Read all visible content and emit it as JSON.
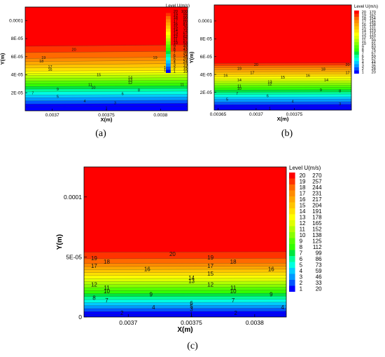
{
  "palette": [
    "#0000ff",
    "#0055ff",
    "#0099ff",
    "#00ccff",
    "#00ffe0",
    "#00ff9a",
    "#00e640",
    "#33ff00",
    "#55ff00",
    "#88ff00",
    "#b3ff00",
    "#dfff00",
    "#ffff00",
    "#ffe000",
    "#ffc400",
    "#ffa800",
    "#ff8c00",
    "#ff6a00",
    "#ff3300",
    "#ff0000"
  ],
  "chart_data": [
    {
      "panel": "a",
      "type": "heatmap",
      "caption": "(a)",
      "xlabel": "X(m)",
      "ylabel": "Y(m)",
      "xlim": [
        0.003675,
        0.003825
      ],
      "ylim": [
        0,
        0.000115
      ],
      "xticks": [
        {
          "v": 0.0037,
          "label": "0.0037"
        },
        {
          "v": 0.00375,
          "label": "0.00375"
        },
        {
          "v": 0.0038,
          "label": "0.0038"
        }
      ],
      "yticks": [
        {
          "v": 2e-05,
          "label": "2E-05"
        },
        {
          "v": 4e-05,
          "label": "4E-05"
        },
        {
          "v": 6e-05,
          "label": "6E-05"
        },
        {
          "v": 8e-05,
          "label": "8E-05"
        },
        {
          "v": 0.0001,
          "label": "0.0001"
        }
      ],
      "legend_title": "Level U(m/s)",
      "levels": [
        20,
        19,
        18,
        17,
        16,
        15,
        14,
        13,
        12,
        11,
        10,
        9,
        8,
        7,
        6,
        5,
        4,
        3,
        2,
        1
      ],
      "values": [
        100,
        95,
        90,
        86,
        81,
        76,
        72,
        67,
        62,
        57,
        53,
        48,
        43,
        38,
        34,
        29,
        24,
        19,
        15,
        10
      ],
      "band_top_y": [
        4.5e-06,
        7.5e-06,
        1.1e-05,
        1.45e-05,
        1.75e-05,
        2.1e-05,
        2.4e-05,
        2.7e-05,
        3e-05,
        3.3e-05,
        3.6e-05,
        3.9e-05,
        4.15e-05,
        4.4e-05,
        4.75e-05,
        5.1e-05,
        5.45e-05,
        5.8e-05,
        6.45e-05,
        7.15e-05
      ],
      "contour_labels": [
        {
          "text": "20",
          "x": 0.00372,
          "y": 6.8e-05
        },
        {
          "text": "19",
          "x": 0.003692,
          "y": 5.9e-05
        },
        {
          "text": "19",
          "x": 0.003795,
          "y": 5.9e-05
        },
        {
          "text": "18",
          "x": 0.00369,
          "y": 5.5e-05
        },
        {
          "text": "17",
          "x": 0.003698,
          "y": 4.9e-05
        },
        {
          "text": "17",
          "x": 0.003805,
          "y": 4.8e-05
        },
        {
          "text": "16",
          "x": 0.003698,
          "y": 4.6e-05
        },
        {
          "text": "16",
          "x": 0.003805,
          "y": 4.5e-05
        },
        {
          "text": "15",
          "x": 0.003743,
          "y": 4e-05
        },
        {
          "text": "14",
          "x": 0.003772,
          "y": 3.7e-05
        },
        {
          "text": "13",
          "x": 0.003772,
          "y": 3.4e-05
        },
        {
          "text": "12",
          "x": 0.003772,
          "y": 3.1e-05
        },
        {
          "text": "11",
          "x": 0.003735,
          "y": 2.9e-05
        },
        {
          "text": "11",
          "x": 0.00382,
          "y": 2.9e-05
        },
        {
          "text": "10",
          "x": 0.003738,
          "y": 2.6e-05
        },
        {
          "text": "9",
          "x": 0.003705,
          "y": 2.4e-05
        },
        {
          "text": "8",
          "x": 0.00378,
          "y": 2.3e-05
        },
        {
          "text": "7",
          "x": 0.003682,
          "y": 2e-05
        },
        {
          "text": "6",
          "x": 0.003765,
          "y": 1.9e-05
        },
        {
          "text": "5",
          "x": 0.003705,
          "y": 1.6e-05
        },
        {
          "text": "4",
          "x": 0.00373,
          "y": 1.1e-05
        },
        {
          "text": "3",
          "x": 0.003758,
          "y": 9e-06
        },
        {
          "text": "1",
          "x": 0.00375,
          "y": 3e-06
        }
      ]
    },
    {
      "panel": "b",
      "type": "heatmap",
      "caption": "(b)",
      "xlabel": "X(m)",
      "ylabel": "Y(m)",
      "xlim": [
        0.003645,
        0.003825
      ],
      "ylim": [
        0,
        0.000118
      ],
      "xticks": [
        {
          "v": 0.00365,
          "label": "0.00365"
        },
        {
          "v": 0.0037,
          "label": "0.0037"
        },
        {
          "v": 0.00375,
          "label": "0.00375"
        }
      ],
      "yticks": [
        {
          "v": 2e-05,
          "label": "2E-05"
        },
        {
          "v": 4e-05,
          "label": "4E-05"
        },
        {
          "v": 6e-05,
          "label": "6E-05"
        },
        {
          "v": 8e-05,
          "label": "8E-05"
        },
        {
          "v": 0.0001,
          "label": "0.0001"
        }
      ],
      "legend_title": "Level U(m/s)",
      "levels": [
        20,
        19,
        18,
        17,
        16,
        15,
        14,
        13,
        12,
        11,
        10,
        9,
        8,
        7,
        6,
        5,
        4,
        3,
        2,
        1
      ],
      "values": [
        170,
        162,
        154,
        146,
        138,
        131,
        123,
        115,
        107,
        99,
        91,
        83,
        75,
        67,
        59,
        52,
        44,
        36,
        28,
        20
      ],
      "band_top_y": [
        3.5e-06,
        6e-06,
        9e-06,
        1.2e-05,
        1.45e-05,
        1.75e-05,
        2e-05,
        2.25e-05,
        2.5e-05,
        2.75e-05,
        3e-05,
        3.25e-05,
        3.5e-05,
        3.75e-05,
        4e-05,
        4.25e-05,
        4.5e-05,
        4.75e-05,
        5e-05,
        5.25e-05
      ],
      "contour_labels": [
        {
          "text": "20",
          "x": 0.0037,
          "y": 5.1e-05
        },
        {
          "text": "20",
          "x": 0.00382,
          "y": 5.1e-05
        },
        {
          "text": "19",
          "x": 0.003678,
          "y": 4.7e-05
        },
        {
          "text": "18",
          "x": 0.003788,
          "y": 4.6e-05
        },
        {
          "text": "17",
          "x": 0.003695,
          "y": 4.2e-05
        },
        {
          "text": "17",
          "x": 0.00382,
          "y": 4.2e-05
        },
        {
          "text": "16",
          "x": 0.00366,
          "y": 3.9e-05
        },
        {
          "text": "16",
          "x": 0.003768,
          "y": 3.9e-05
        },
        {
          "text": "15",
          "x": 0.003735,
          "y": 3.7e-05
        },
        {
          "text": "14",
          "x": 0.003678,
          "y": 3.4e-05
        },
        {
          "text": "14",
          "x": 0.003792,
          "y": 3.4e-05
        },
        {
          "text": "13",
          "x": 0.003718,
          "y": 3.2e-05
        },
        {
          "text": "12",
          "x": 0.003718,
          "y": 2.95e-05
        },
        {
          "text": "11",
          "x": 0.003678,
          "y": 2.7e-05
        },
        {
          "text": "10",
          "x": 0.003678,
          "y": 2.45e-05
        },
        {
          "text": "9",
          "x": 0.003785,
          "y": 2.3e-05
        },
        {
          "text": "8",
          "x": 0.00381,
          "y": 2.15e-05
        },
        {
          "text": "7",
          "x": 0.003675,
          "y": 1.9e-05
        },
        {
          "text": "6",
          "x": 0.003715,
          "y": 1.6e-05
        },
        {
          "text": "5",
          "x": 0.003662,
          "y": 1.2e-05
        },
        {
          "text": "4",
          "x": 0.003748,
          "y": 1e-05
        },
        {
          "text": "3",
          "x": 0.00381,
          "y": 7e-06
        },
        {
          "text": "1",
          "x": 0.003718,
          "y": 2e-06
        }
      ]
    },
    {
      "panel": "c",
      "type": "heatmap",
      "caption": "(c)",
      "xlabel": "X(m)",
      "ylabel": "Y(m)",
      "xlim": [
        0.003665,
        0.003825
      ],
      "ylim": [
        0,
        0.000125
      ],
      "xticks": [
        {
          "v": 0.0037,
          "label": "0.0037"
        },
        {
          "v": 0.00375,
          "label": "0.00375"
        },
        {
          "v": 0.0038,
          "label": "0.0038"
        }
      ],
      "yticks": [
        {
          "v": 0,
          "label": "0"
        },
        {
          "v": 5e-05,
          "label": "5E-05"
        },
        {
          "v": 0.0001,
          "label": "0.0001"
        }
      ],
      "legend_title": "Level U(m/s)",
      "levels": [
        20,
        19,
        18,
        17,
        16,
        15,
        14,
        13,
        12,
        11,
        10,
        9,
        8,
        7,
        6,
        5,
        4,
        3,
        2,
        1
      ],
      "values": [
        270,
        257,
        244,
        231,
        217,
        204,
        191,
        178,
        165,
        152,
        138,
        125,
        112,
        99,
        86,
        73,
        59,
        46,
        33,
        20
      ],
      "band_top_y": [
        2e-06,
        4.5e-06,
        7e-06,
        9.5e-06,
        1.2e-05,
        1.45e-05,
        1.7e-05,
        1.95e-05,
        2.2e-05,
        2.45e-05,
        2.7e-05,
        2.95e-05,
        3.2e-05,
        3.45e-05,
        3.7e-05,
        3.95e-05,
        4.2e-05,
        4.45e-05,
        4.85e-05,
        5.4e-05
      ],
      "contour_labels": [
        {
          "text": "20",
          "x": 0.003735,
          "y": 5.2e-05
        },
        {
          "text": "19",
          "x": 0.003673,
          "y": 4.85e-05
        },
        {
          "text": "19",
          "x": 0.003765,
          "y": 4.9e-05
        },
        {
          "text": "18",
          "x": 0.003683,
          "y": 4.55e-05
        },
        {
          "text": "18",
          "x": 0.003783,
          "y": 4.55e-05
        },
        {
          "text": "17",
          "x": 0.003673,
          "y": 4.2e-05
        },
        {
          "text": "17",
          "x": 0.003765,
          "y": 4.2e-05
        },
        {
          "text": "16",
          "x": 0.003715,
          "y": 3.95e-05
        },
        {
          "text": "16",
          "x": 0.003813,
          "y": 3.95e-05
        },
        {
          "text": "15",
          "x": 0.003765,
          "y": 3.55e-05
        },
        {
          "text": "14",
          "x": 0.00375,
          "y": 3.2e-05
        },
        {
          "text": "13",
          "x": 0.00375,
          "y": 2.95e-05
        },
        {
          "text": "12",
          "x": 0.003673,
          "y": 2.65e-05
        },
        {
          "text": "12",
          "x": 0.003765,
          "y": 2.65e-05
        },
        {
          "text": "11",
          "x": 0.003683,
          "y": 2.4e-05
        },
        {
          "text": "11",
          "x": 0.003783,
          "y": 2.4e-05
        },
        {
          "text": "10",
          "x": 0.003683,
          "y": 2.1e-05
        },
        {
          "text": "10",
          "x": 0.003783,
          "y": 2.1e-05
        },
        {
          "text": "9",
          "x": 0.003718,
          "y": 1.85e-05
        },
        {
          "text": "9",
          "x": 0.003813,
          "y": 1.85e-05
        },
        {
          "text": "8",
          "x": 0.003673,
          "y": 1.55e-05
        },
        {
          "text": "7",
          "x": 0.003683,
          "y": 1.35e-05
        },
        {
          "text": "7",
          "x": 0.003783,
          "y": 1.35e-05
        },
        {
          "text": "6",
          "x": 0.00375,
          "y": 1.1e-05
        },
        {
          "text": "5",
          "x": 0.00375,
          "y": 8.5e-06
        },
        {
          "text": "4",
          "x": 0.00372,
          "y": 7.5e-06
        },
        {
          "text": "4",
          "x": 0.003822,
          "y": 7.5e-06
        },
        {
          "text": "3",
          "x": 0.00375,
          "y": 6e-06
        },
        {
          "text": "2",
          "x": 0.003695,
          "y": 3e-06
        },
        {
          "text": "2",
          "x": 0.003785,
          "y": 3e-06
        },
        {
          "text": "1",
          "x": 0.00375,
          "y": 1.5e-06
        }
      ]
    }
  ]
}
